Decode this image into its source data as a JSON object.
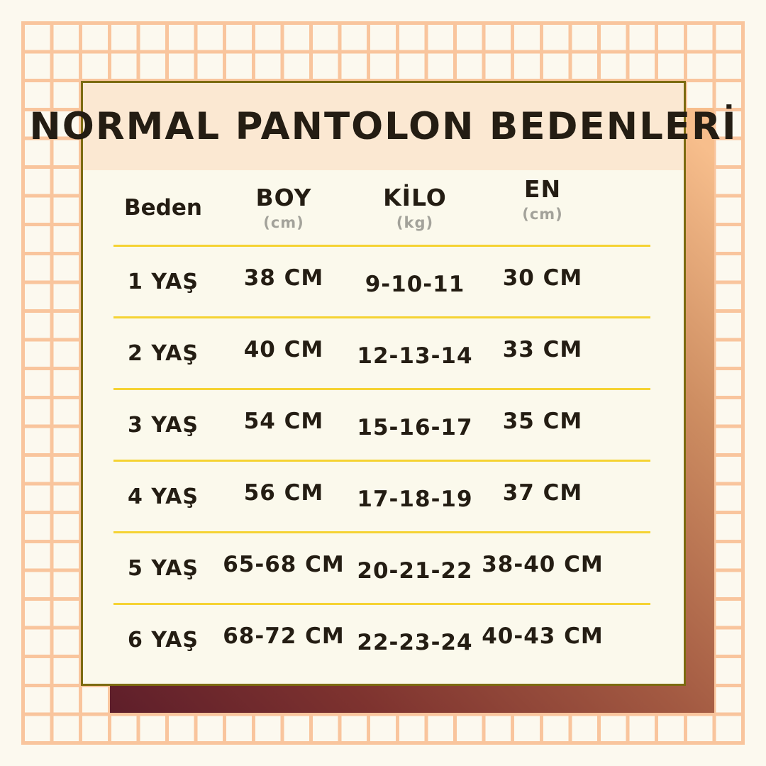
{
  "title": "NORMAL PANTOLON BEDENLERİ",
  "table": {
    "columns": [
      {
        "label": "Beden",
        "unit": ""
      },
      {
        "label": "BOY",
        "unit": "(cm)"
      },
      {
        "label": "KİLO",
        "unit": "(kg)"
      },
      {
        "label": "EN",
        "unit": "(cm)"
      }
    ],
    "rows": [
      [
        "1 YAŞ",
        "38 CM",
        "9-10-11",
        "30 CM"
      ],
      [
        "2 YAŞ",
        "40 CM",
        "12-13-14",
        "33 CM"
      ],
      [
        "3 YAŞ",
        "54 CM",
        "15-16-17",
        "35 CM"
      ],
      [
        "4 YAŞ",
        "56 CM",
        "17-18-19",
        "37 CM"
      ],
      [
        "5 YAŞ",
        "65-68 CM",
        "20-21-22",
        "38-40 CM"
      ],
      [
        "6 YAŞ",
        "68-72 CM",
        "22-23-24",
        "40-43 CM"
      ]
    ]
  },
  "chart_data": {
    "type": "table",
    "title": "NORMAL PANTOLON BEDENLERİ",
    "columns": [
      "Beden",
      "BOY (cm)",
      "KİLO (kg)",
      "EN (cm)"
    ],
    "rows": [
      [
        "1 YAŞ",
        "38 CM",
        "9-10-11",
        "30 CM"
      ],
      [
        "2 YAŞ",
        "40 CM",
        "12-13-14",
        "33 CM"
      ],
      [
        "3 YAŞ",
        "54 CM",
        "15-16-17",
        "35 CM"
      ],
      [
        "4 YAŞ",
        "56 CM",
        "17-18-19",
        "37 CM"
      ],
      [
        "5 YAŞ",
        "65-68 CM",
        "20-21-22",
        "38-40 CM"
      ],
      [
        "6 YAŞ",
        "68-72 CM",
        "22-23-24",
        "40-43 CM"
      ]
    ]
  },
  "colors": {
    "page_bg": "#FCF9EF",
    "grid_line": "#F9C59D",
    "card_bg": "#FBF9EC",
    "card_border": "#7C6B11",
    "title_bg": "#FBE8D2",
    "text": "#241D13",
    "unit_text": "#A3A29A",
    "divider": "#F5D333",
    "shadow_from": "#5E1E2A",
    "shadow_to": "#F7BE8C"
  }
}
